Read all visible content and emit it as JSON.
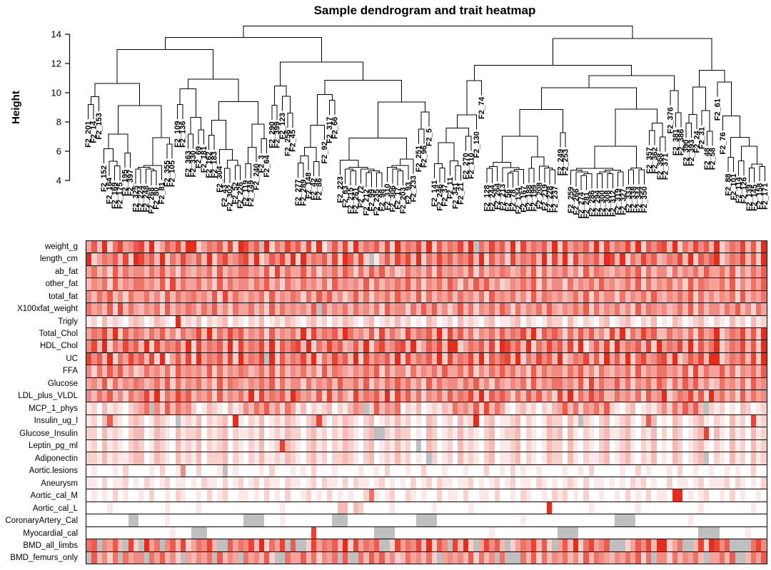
{
  "chart_data": {
    "type": "heatmap",
    "title": "Sample dendrogram and trait heatmap",
    "dendrogram": {
      "ylabel": "Height",
      "yticks": [
        4,
        6,
        8,
        10,
        12,
        14
      ],
      "ylim": [
        4,
        15
      ],
      "root_height": 14.55,
      "hang": 1.0
    },
    "heatmap": {
      "low_color": "#FFFFFF",
      "high_color": "#E62D1B",
      "na_color": "#BFBFBF",
      "scale_note": "0=low(white) .. 9=high(red), x=missing(grey)"
    },
    "samples": [
      "F2_201",
      "F2_14",
      "F2_153",
      "F2_152",
      "F2_164",
      "F2_169",
      "F2_175",
      "F2_195",
      "F2_397",
      "F2_325",
      "F2_224",
      "F2_248",
      "F2_268",
      "F2_80",
      "F2_81",
      "F2_355",
      "F2_105",
      "F2_109",
      "F2_136",
      "F2_363",
      "F2_330",
      "F2_69",
      "F2_181",
      "F2_162",
      "F2_183",
      "F2_304",
      "F2_43",
      "F2_302",
      "F2_52",
      "F2_226",
      "F2_119",
      "F2_149",
      "F2_240",
      "F2_3",
      "F2_64",
      "F2_290",
      "F2_399",
      "F2_123",
      "F2_256",
      "F2_45",
      "F2_277",
      "F2_289",
      "F2_148",
      "F2_42",
      "F2_86",
      "F2_92",
      "F2_317",
      "F2_66",
      "F2_223",
      "F2_63",
      "F2_215",
      "F2_261",
      "F2_72",
      "F2_212",
      "F2_99",
      "F2_235",
      "F2_98",
      "F2_310",
      "F2_306",
      "F2_17",
      "F2_203",
      "F2_93",
      "F2_233",
      "F2_251",
      "F2_96",
      "F2_5",
      "F2_141",
      "F2_246",
      "F2_37",
      "F2_11",
      "F2_341",
      "F2_21",
      "F2_270",
      "F2_110",
      "F2_130",
      "F2_74",
      "F2_128",
      "F2_244",
      "F2_264",
      "F2_213",
      "F2_56",
      "F2_78",
      "F2_134",
      "F2_167",
      "F2_188",
      "F2_199",
      "F2_208",
      "F2_219",
      "F2_228",
      "F2_237",
      "F2_249",
      "F2_253",
      "F2_259",
      "F2_266",
      "F2_274",
      "F2_281",
      "F2_286",
      "F2_294",
      "F2_300",
      "F2_308",
      "F2_312",
      "F2_319",
      "F2_327",
      "F2_333",
      "F2_338",
      "F2_344",
      "F2_350",
      "F2_357",
      "F2_362",
      "F2_368",
      "F2_371",
      "F2_376",
      "F2_381",
      "F2_386",
      "F2_390",
      "F2_393",
      "F2_24",
      "F2_31",
      "F2_48",
      "F2_58",
      "F2_61",
      "F2_76",
      "F2_88",
      "F2_101",
      "F2_114",
      "F2_126",
      "F2_139",
      "F2_145",
      "F2_158",
      "F2_171"
    ],
    "rows": [
      {
        "label": "weight_g",
        "values": "47392684578392475839924657 3829857x92648573829147382946573829465839274658 39x6485739284657392846573928465839275783926485739246583729"
      },
      {
        "label": "length_cm",
        "values": "9246573829857392648547392684578392475839294657 38297382x147385839264857465839274628465739283928465739839264857346583927579246583729"
      },
      {
        "label": "ab_fat",
        "values": "4635273645536473526435462735466453728364473625463752637473523645362745453726354653463726354635273654354647263552635463744637253647"
      },
      {
        "label": "other_fat",
        "values": "3546273546645372836446352736455364735264364536274545372635464736254637526374735235464726355263546374534637263546352736544637253647"
      },
      {
        "label": "total_fat",
        "values": "5364735264463527364564537283643546273546526374735247362546374537263546364536274546352736545346372635526354637435464726353546273546"
      },
      {
        "label": "X100xfat_weight",
        "values": "6453728364354627354653647352644635273645 4537x6354636453627455263747352473625463752635463743546472635463527365453463726355364735264"
      },
      {
        "label": "Trigly",
        "values": "1203121023201321091213021230210213012132102312021321023012131201032012031210230112302101322031021023012310213010320123102103120312"
      },
      {
        "label": "Total_Chol",
        "values": "4658392746536473526458392648573546273546392846573964537283642846573928473625463746583927575263747352839264857336453627459246583729"
      },
      {
        "label": "HDL_Chol",
        "values": "5839264857392846573928465739284658392757839264857347392684578392475839924657382985739264857382914738294657382946583927469246583729"
      },
      {
        "label": "UC",
        "values": "857392648573829147382946573829 4658x9274658392648573928465739284657392846583927578392648573924658372947392684578392475839 9246573829"
      },
      {
        "label": "FFA",
        "values": "5263747352364536274545372635465346372635463527365435464726355263546374463725364746352736455364735264354627354664537283644736254637"
      },
      {
        "label": "Glucose",
        "values": "4537263546534637263546352736543546472635526354637446372536474635273645536473526435462735466453728364473625463752637473523645362745"
      },
      {
        "label": "LDL_plus_VLDL",
        "values": "5364735264583926485735462735463928465739645372836428465739284736254637465839275752637473528392648573364536274592465837294635273645"
      },
      {
        "label": "MCP_1_phys",
        "values": "120312102346x5273645201321031253647352641302123021354x27354602130121326453728364102312021347362546372102301213 52637473x21201032012"
      },
      {
        "label": "Insulin_ug_l",
        "values": "12037210232013210x12130212309102130121321023820213210230121312010320120312902301123021013220 31x2102301231027301032012 3102103120812"
      },
      {
        "label": "Glucose_Insulin",
        "values": "2203121023301321031223021230211213012132202312021321023xx21322010320121312102301223021013230310210231123102130203201238031 03120312"
      },
      {
        "label": "Leptin_pg_ml",
        "values": "120312102320132103121302123021021301283210231202132102301213120x03201203121023011230210132203102102301231021301032012 3102103120312"
      },
      {
        "label": "Adiponectin",
        "values": "22131211233013210312130222302102131121321023120223210230121312010x20120312102301123021013220310211230123102130 10320123x02103120312"
      },
      {
        "label": "Aortic.lesions",
        "values": "01000102000010200150020001x010000102000101020001000010010200010020001000100020010201001000010010200000100201000102001 0010010100200"
      },
      {
        "label": "Aneurysm",
        "values": "1102011201021012011010211020120120211021101202110202110120101020120211011201012012011021010121020110101021201002011012011120210102"
      },
      {
        "label": "Aortic_cal_M",
        "values": "0101020100102001021001020120011010201020012010201010026101200210100201102001102001021001021201020010010201020110990101200102010010"
      },
      {
        "label": "Aortic_cal_L",
        "values": "0000100000000001000001000000000000000100000000003303200000100000001000000100000000000000900000001000000001000000000001000000000100"
      },
      {
        "label": "CoronaryArtery_Cal",
        "values": "00000000xx00000100000000000000xxxx0001000000000xxx0000000000000xxxx0000000000000000100000000000000000xxxx0000000000100000000000000"
      },
      {
        "label": "Myocardial_cal",
        "values": "00000000000000001000xxx00000000000000000000800000000000xxxx0000000000000000001000000000000xxxx00000000000000000000000xxxx00000100"
      },
      {
        "label": "BMD_all_limbs",
        "values": "67x5473x82x946x5738246583xx74658392648x7xx28465739284657xx28465839275x8392x48573x24658372x4739268457xxx24758399246xx3829857xxxx685"
      },
      {
        "label": "BMD_femurs_only",
        "values": "x73526x6455x647352x43546x7354x645372xx6447362546x7xx637473523645362x4545372635x6xxx63726354635273654 35464726x552635463x44637xx3647"
      }
    ]
  }
}
